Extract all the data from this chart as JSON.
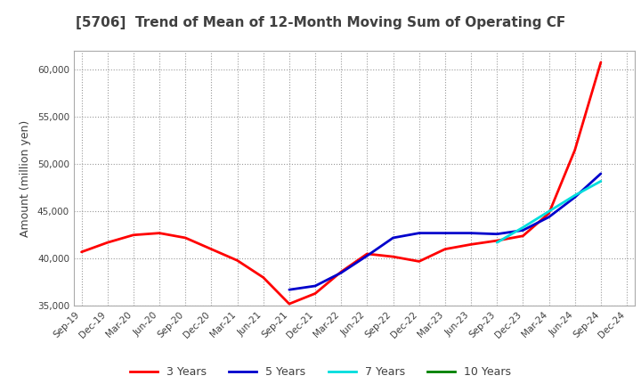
{
  "title": "[5706]  Trend of Mean of 12-Month Moving Sum of Operating CF",
  "ylabel": "Amount (million yen)",
  "ylim": [
    35000,
    62000
  ],
  "yticks": [
    35000,
    40000,
    45000,
    50000,
    55000,
    60000
  ],
  "background_color": "#ffffff",
  "grid_color": "#999999",
  "title_color": "#404040",
  "x_labels": [
    "Sep-19",
    "Dec-19",
    "Mar-20",
    "Jun-20",
    "Sep-20",
    "Dec-20",
    "Mar-21",
    "Jun-21",
    "Sep-21",
    "Dec-21",
    "Mar-22",
    "Jun-22",
    "Sep-22",
    "Dec-22",
    "Mar-23",
    "Jun-23",
    "Sep-23",
    "Dec-23",
    "Mar-24",
    "Jun-24",
    "Sep-24",
    "Dec-24"
  ],
  "series": {
    "3 Years": {
      "color": "#ff0000",
      "values": [
        40700,
        41700,
        42500,
        42700,
        42200,
        41000,
        39800,
        38000,
        35200,
        36300,
        38600,
        40500,
        40200,
        39700,
        41000,
        41500,
        41900,
        42400,
        44800,
        51500,
        60800,
        null
      ]
    },
    "5 Years": {
      "color": "#0000cc",
      "values": [
        null,
        null,
        null,
        null,
        null,
        null,
        null,
        null,
        36700,
        37100,
        38500,
        40300,
        42200,
        42700,
        42700,
        42700,
        42600,
        43000,
        44400,
        46500,
        49000,
        null
      ]
    },
    "7 Years": {
      "color": "#00dddd",
      "values": [
        null,
        null,
        null,
        null,
        null,
        null,
        null,
        null,
        null,
        null,
        null,
        null,
        null,
        null,
        null,
        null,
        41700,
        43300,
        45000,
        46700,
        48200,
        null
      ]
    },
    "10 Years": {
      "color": "#008000",
      "values": [
        null,
        null,
        null,
        null,
        null,
        null,
        null,
        null,
        null,
        null,
        null,
        null,
        null,
        null,
        null,
        null,
        null,
        null,
        null,
        null,
        null,
        null
      ]
    }
  },
  "legend_order": [
    "3 Years",
    "5 Years",
    "7 Years",
    "10 Years"
  ]
}
